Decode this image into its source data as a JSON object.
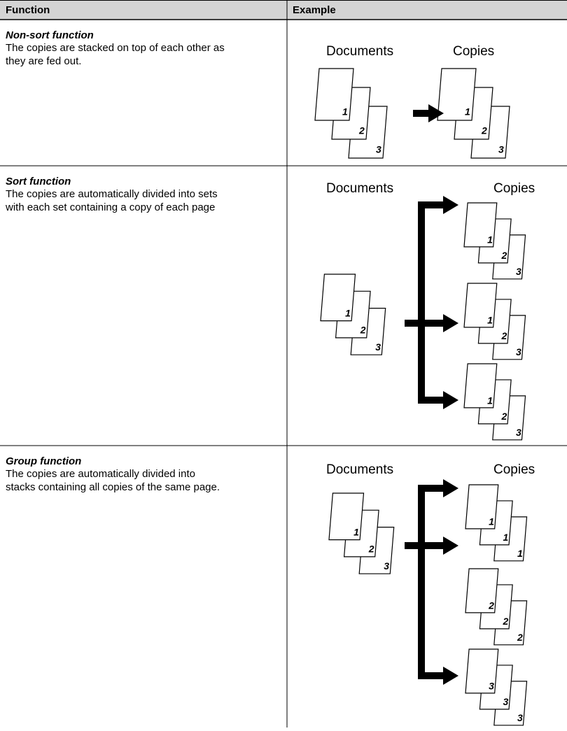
{
  "header": {
    "function": "Function",
    "example": "Example"
  },
  "rows": [
    {
      "title": "Non-sort function",
      "description": [
        "The copies are stacked on top of each other as",
        "they are fed out."
      ],
      "documents_label": "Documents",
      "copies_label": "Copies",
      "documents_pages": [
        "1",
        "2",
        "3"
      ],
      "copies_sets": [
        [
          "1",
          "2",
          "3"
        ]
      ]
    },
    {
      "title": "Sort function",
      "description": [
        "The copies are automatically divided into sets",
        "with each set containing a copy of each page"
      ],
      "documents_label": "Documents",
      "copies_label": "Copies",
      "documents_pages": [
        "1",
        "2",
        "3"
      ],
      "copies_sets": [
        [
          "1",
          "2",
          "3"
        ],
        [
          "1",
          "2",
          "3"
        ],
        [
          "1",
          "2",
          "3"
        ]
      ]
    },
    {
      "title": "Group function",
      "description": [
        "The copies are automatically divided into",
        "stacks containing all copies of the same page."
      ],
      "documents_label": "Documents",
      "copies_label": "Copies",
      "documents_pages": [
        "1",
        "2",
        "3"
      ],
      "copies_sets": [
        [
          "1",
          "1",
          "1"
        ],
        [
          "2",
          "2",
          "2"
        ],
        [
          "3",
          "3",
          "3"
        ]
      ]
    }
  ]
}
